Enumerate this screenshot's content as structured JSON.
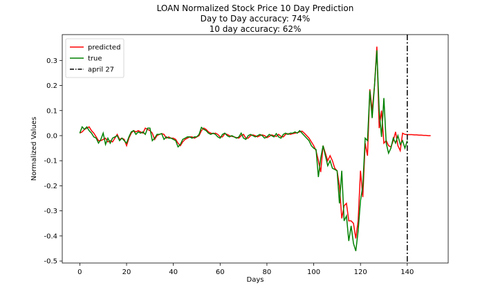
{
  "chart_data": {
    "type": "line",
    "title": "LOAN Normalized Stock Price 10 Day Prediction",
    "subtitle": [
      "Day to Day accuracy: 74%",
      "10 day accuracy: 62%"
    ],
    "x_label": "Days",
    "y_label": "Normalized Values",
    "x": [
      0,
      1,
      2,
      3,
      4,
      5,
      6,
      7,
      8,
      9,
      10,
      11,
      12,
      13,
      14,
      15,
      16,
      17,
      18,
      19,
      20,
      21,
      22,
      23,
      24,
      25,
      26,
      27,
      28,
      29,
      30,
      31,
      32,
      33,
      34,
      35,
      36,
      37,
      38,
      39,
      40,
      41,
      42,
      43,
      44,
      45,
      46,
      47,
      48,
      49,
      50,
      51,
      52,
      53,
      54,
      55,
      56,
      57,
      58,
      59,
      60,
      61,
      62,
      63,
      64,
      65,
      66,
      67,
      68,
      69,
      70,
      71,
      72,
      73,
      74,
      75,
      76,
      77,
      78,
      79,
      80,
      81,
      82,
      83,
      84,
      85,
      86,
      87,
      88,
      89,
      90,
      91,
      92,
      93,
      94,
      95,
      96,
      97,
      98,
      99,
      100,
      101,
      102,
      103,
      104,
      105,
      106,
      107,
      108,
      109,
      110,
      111,
      112,
      113,
      114,
      115,
      116,
      117,
      118,
      119,
      120,
      121,
      122,
      123,
      124,
      125,
      126,
      127,
      128,
      129,
      130,
      131,
      132,
      133,
      134,
      135,
      136,
      137,
      138,
      139,
      140,
      141,
      142,
      143,
      144,
      145,
      146,
      147,
      148,
      149,
      150
    ],
    "series": [
      {
        "name": "predicted",
        "color": "#ff0000",
        "values": [
          0.01,
          0.015,
          0.025,
          0.03,
          0.035,
          0.02,
          0.01,
          -0.005,
          -0.02,
          -0.02,
          -0.015,
          -0.01,
          -0.025,
          -0.02,
          -0.025,
          -0.01,
          0.005,
          -0.015,
          -0.01,
          -0.015,
          -0.04,
          -0.01,
          0.01,
          0.02,
          0.015,
          0.02,
          0.015,
          0.01,
          0.03,
          0.025,
          0.02,
          0.01,
          -0.015,
          0.0,
          0.005,
          0.008,
          0.005,
          -0.01,
          -0.005,
          -0.01,
          -0.01,
          -0.015,
          -0.03,
          -0.04,
          -0.025,
          -0.015,
          -0.01,
          -0.005,
          -0.005,
          -0.01,
          -0.005,
          0.0,
          0.02,
          0.03,
          0.025,
          0.015,
          0.01,
          0.008,
          0.01,
          0.005,
          -0.005,
          -0.005,
          0.008,
          0.005,
          0.0,
          -0.003,
          -0.005,
          -0.008,
          -0.01,
          0.0,
          0.005,
          -0.01,
          -0.01,
          0.0,
          0.003,
          0.0,
          -0.005,
          0.0,
          0.003,
          0.0,
          -0.008,
          -0.003,
          0.003,
          0.0,
          -0.003,
          0.005,
          -0.003,
          -0.005,
          0.005,
          0.008,
          0.005,
          0.008,
          0.01,
          0.012,
          0.015,
          0.018,
          0.01,
          0.0,
          -0.01,
          -0.025,
          -0.04,
          -0.06,
          -0.1,
          -0.145,
          -0.04,
          -0.07,
          -0.1,
          -0.08,
          -0.1,
          -0.13,
          -0.14,
          -0.2,
          -0.33,
          -0.28,
          -0.27,
          -0.34,
          -0.34,
          -0.35,
          -0.41,
          -0.34,
          -0.14,
          -0.245,
          -0.03,
          -0.08,
          0.185,
          0.1,
          0.2,
          0.355,
          0.03,
          0.1,
          -0.03,
          -0.02,
          -0.04,
          -0.045,
          -0.02,
          0.015,
          -0.04,
          -0.06,
          0.01,
          0.005,
          0.004,
          0.004,
          0.004,
          0.003,
          0.003,
          0.002,
          0.002,
          0.001,
          0.001,
          0.0,
          0.0
        ]
      },
      {
        "name": "true",
        "color": "#008000",
        "values": [
          0.01,
          0.035,
          0.025,
          0.035,
          0.02,
          0.01,
          -0.005,
          -0.01,
          -0.03,
          -0.015,
          0.01,
          -0.035,
          -0.01,
          -0.03,
          -0.01,
          -0.005,
          0.0,
          -0.02,
          -0.01,
          -0.02,
          -0.03,
          -0.005,
          0.015,
          0.02,
          0.005,
          0.015,
          0.01,
          0.015,
          0.005,
          0.03,
          0.03,
          -0.02,
          -0.01,
          0.005,
          0.005,
          0.008,
          -0.015,
          -0.005,
          -0.01,
          -0.01,
          -0.015,
          -0.02,
          -0.045,
          -0.035,
          -0.015,
          -0.01,
          -0.005,
          -0.005,
          -0.01,
          -0.005,
          -0.005,
          0.005,
          0.033,
          0.025,
          0.02,
          0.01,
          0.005,
          0.01,
          0.005,
          -0.005,
          -0.01,
          0.005,
          0.01,
          0.0,
          -0.005,
          0.0,
          -0.005,
          -0.01,
          -0.005,
          0.01,
          -0.01,
          -0.015,
          0.0,
          0.005,
          0.0,
          -0.005,
          0.0,
          0.005,
          0.0,
          -0.01,
          -0.005,
          0.005,
          0.0,
          -0.005,
          0.008,
          -0.005,
          -0.01,
          0.005,
          0.01,
          0.005,
          0.01,
          0.01,
          0.015,
          0.01,
          0.02,
          0.01,
          0.0,
          -0.01,
          -0.02,
          -0.04,
          -0.05,
          -0.055,
          -0.165,
          -0.09,
          -0.04,
          -0.08,
          -0.12,
          -0.1,
          -0.13,
          -0.135,
          -0.14,
          -0.27,
          -0.14,
          -0.34,
          -0.32,
          -0.42,
          -0.36,
          -0.43,
          -0.46,
          -0.38,
          -0.26,
          -0.2,
          -0.01,
          -0.02,
          0.18,
          0.07,
          0.2,
          0.34,
          0.1,
          -0.005,
          0.15,
          -0.03,
          -0.07,
          -0.05,
          -0.01,
          -0.03,
          0.0,
          -0.035,
          -0.02,
          -0.05,
          -0.02,
          null,
          null,
          null,
          null,
          null,
          null,
          null,
          null,
          null,
          null
        ]
      }
    ],
    "vline": {
      "name": "april 27",
      "x": 140,
      "color": "#000000"
    },
    "xlim": [
      -7.5,
      157.5
    ],
    "xticks": [
      0,
      20,
      40,
      60,
      80,
      100,
      120,
      140
    ],
    "ylim": [
      -0.508,
      0.403
    ],
    "yticks": [
      -0.5,
      -0.4,
      -0.3,
      -0.2,
      -0.1,
      {
        "value": 0,
        "label": "0.0"
      },
      0.1,
      0.2,
      0.3
    ],
    "legend": "upper left"
  }
}
